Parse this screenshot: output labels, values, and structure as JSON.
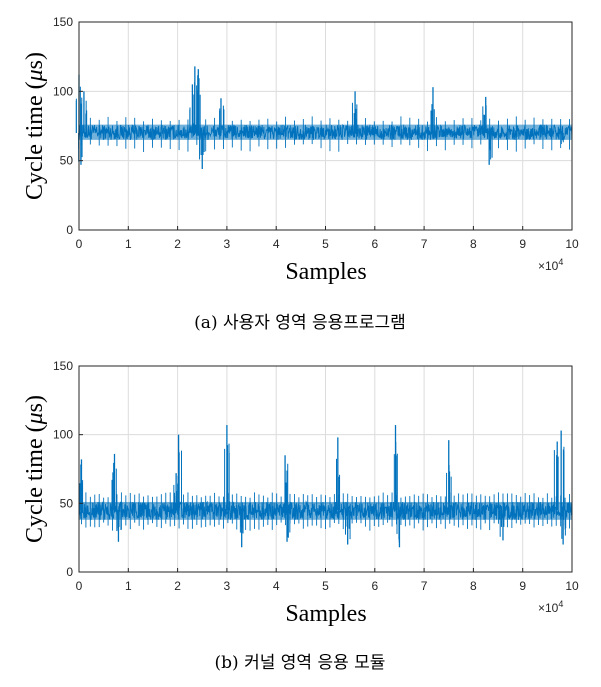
{
  "chart_data": [
    {
      "type": "line",
      "caption": "(a)  사용자 영역 응용프로그램",
      "xlabel": "Samples",
      "ylabel_main": "Cycle time (",
      "ylabel_mu": "μ",
      "ylabel_end": "s)",
      "xlim": [
        0,
        10
      ],
      "ylim": [
        0,
        150
      ],
      "x_exponent_base": "×10",
      "x_exponent_power": "4",
      "xticks": [
        "0",
        "1",
        "2",
        "3",
        "4",
        "5",
        "6",
        "7",
        "8",
        "9",
        "10"
      ],
      "yticks": [
        "0",
        "50",
        "100",
        "150"
      ],
      "grid": true,
      "color": "#0072BD",
      "series": [
        {
          "baseline": 70,
          "band_low": 65,
          "band_high": 76,
          "spike_every": 0.18,
          "spike_high": 82,
          "spike_low": 56,
          "x": [
            0.0,
            0.04,
            0.1,
            2.3,
            2.35,
            2.42,
            2.5,
            2.88,
            5.6,
            7.18,
            8.25,
            8.32,
            9.78
          ],
          "y": [
            112,
            47,
            100,
            105,
            118,
            116,
            44,
            95,
            100,
            103,
            96,
            47,
            62
          ]
        }
      ]
    },
    {
      "type": "line",
      "caption": "(b)  커널 영역 응용 모듈",
      "xlabel": "Samples",
      "ylabel_main": "Cycle time (",
      "ylabel_mu": "μ",
      "ylabel_end": "s)",
      "xlim": [
        0,
        10
      ],
      "ylim": [
        0,
        150
      ],
      "x_exponent_base": "×10",
      "x_exponent_power": "4",
      "xticks": [
        "0",
        "1",
        "2",
        "3",
        "4",
        "5",
        "6",
        "7",
        "8",
        "9",
        "10"
      ],
      "yticks": [
        "0",
        "50",
        "100",
        "150"
      ],
      "grid": true,
      "color": "#0072BD",
      "series": [
        {
          "baseline": 45,
          "band_low": 38,
          "band_high": 51,
          "spike_every": 0.09,
          "spike_high": 58,
          "spike_low": 30,
          "x": [
            0.05,
            0.72,
            0.8,
            1.97,
            2.02,
            3.0,
            3.3,
            4.18,
            4.22,
            5.25,
            5.45,
            6.42,
            6.5,
            7.5,
            8.6,
            9.7,
            9.78,
            9.82
          ],
          "y": [
            82,
            86,
            22,
            72,
            100,
            107,
            18,
            85,
            22,
            98,
            20,
            107,
            18,
            96,
            23,
            95,
            103,
            20
          ]
        }
      ]
    }
  ]
}
